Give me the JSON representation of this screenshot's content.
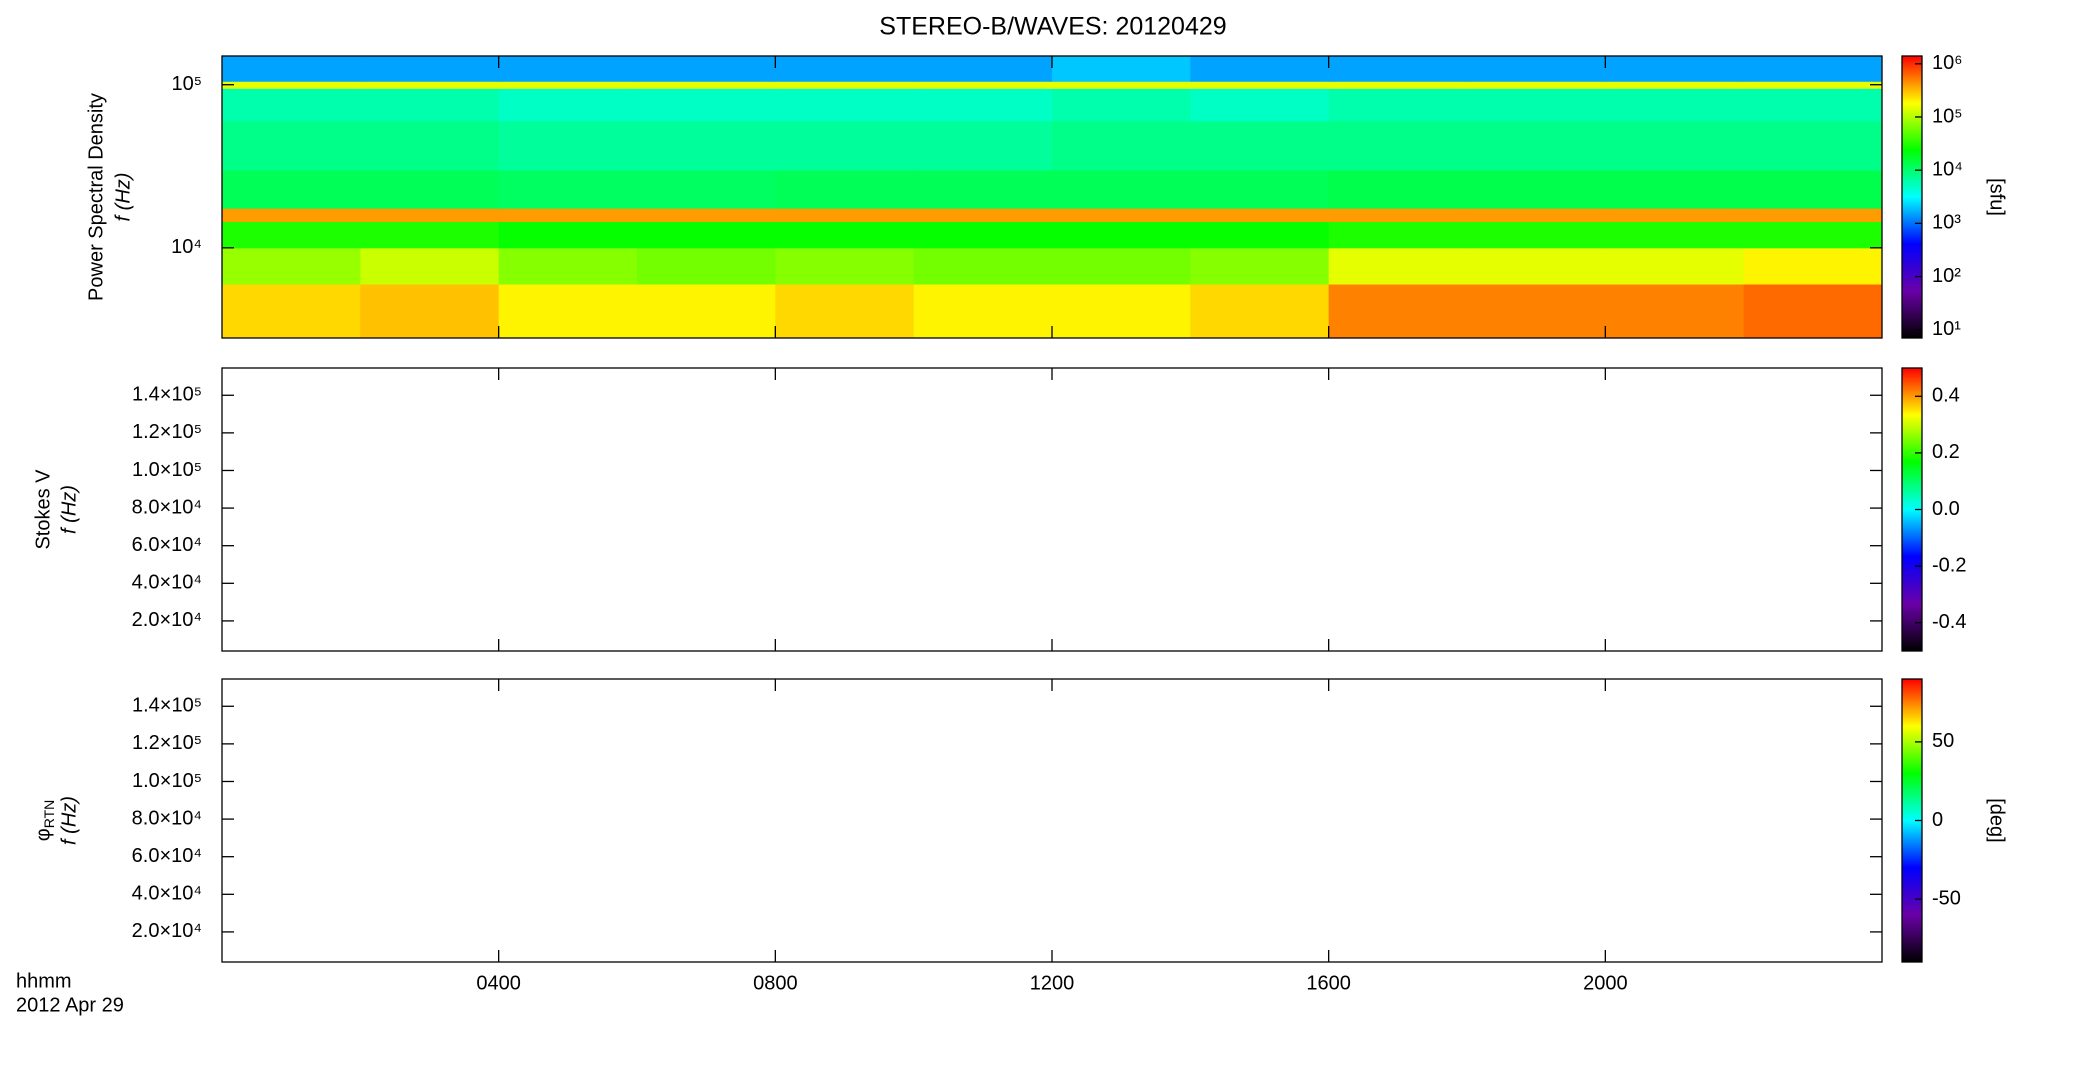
{
  "chart_data": [
    {
      "type": "heatmap",
      "title": "STEREO-B/WAVES: 20120429",
      "ylabel": "Power Spectral Density",
      "ylabel2": "f (Hz)",
      "ylog": true,
      "ylim": [
        2800,
        150000
      ],
      "yticks": [
        {
          "value": 10000,
          "label": "10⁴"
        },
        {
          "value": 100000,
          "label": "10⁵"
        }
      ],
      "x_bins": [
        0,
        2,
        4,
        6,
        8,
        10,
        12,
        14,
        16,
        18,
        20,
        22,
        24
      ],
      "y_bins": [
        2800,
        6000,
        10000,
        14500,
        17500,
        30000,
        60000,
        95000,
        105000,
        150000
      ],
      "values": [
        [
          250000,
          300000,
          200000,
          200000,
          250000,
          200000,
          200000,
          250000,
          500000,
          500000,
          500000,
          600000
        ],
        [
          80000,
          120000,
          70000,
          60000,
          70000,
          60000,
          60000,
          70000,
          150000,
          150000,
          150000,
          200000
        ],
        [
          30000,
          30000,
          25000,
          25000,
          25000,
          25000,
          25000,
          25000,
          30000,
          30000,
          30000,
          30000
        ],
        [
          400000,
          400000,
          400000,
          400000,
          400000,
          400000,
          400000,
          400000,
          400000,
          400000,
          400000,
          400000
        ],
        [
          12000,
          12000,
          11000,
          11000,
          12000,
          12000,
          12000,
          12000,
          13000,
          13000,
          13000,
          13000
        ],
        [
          8000,
          8000,
          7000,
          7000,
          7000,
          7000,
          8000,
          8000,
          8000,
          8000,
          8000,
          8000
        ],
        [
          6000,
          6000,
          5000,
          5000,
          5000,
          5000,
          6000,
          5000,
          6000,
          6000,
          6000,
          6000
        ],
        [
          150000,
          150000,
          150000,
          150000,
          150000,
          150000,
          150000,
          150000,
          150000,
          150000,
          150000,
          150000
        ],
        [
          1500,
          1500,
          1500,
          1500,
          1500,
          1500,
          2000,
          1500,
          1500,
          1500,
          1500,
          1500
        ]
      ],
      "clog": true,
      "clim": [
        7,
        1400000
      ],
      "cticks": [
        {
          "value": 10,
          "label": "10¹"
        },
        {
          "value": 100,
          "label": "10²"
        },
        {
          "value": 1000,
          "label": "10³"
        },
        {
          "value": 10000,
          "label": "10⁴"
        },
        {
          "value": 100000,
          "label": "10⁵"
        },
        {
          "value": 1000000,
          "label": "10⁶"
        }
      ],
      "clabel": "[sfu]",
      "colorscale": [
        "#000000",
        "#6a00a8",
        "#0000ff",
        "#00ffff",
        "#00ff00",
        "#ffff00",
        "#ff0000"
      ]
    },
    {
      "type": "heatmap",
      "ylabel": "Stokes V",
      "ylabel2": "f (Hz)",
      "ylim": [
        4000,
        154500
      ],
      "yticks": [
        {
          "value": 20000,
          "label": "2.0×10⁴"
        },
        {
          "value": 40000,
          "label": "4.0×10⁴"
        },
        {
          "value": 60000,
          "label": "6.0×10⁴"
        },
        {
          "value": 80000,
          "label": "8.0×10⁴"
        },
        {
          "value": 100000,
          "label": "1.0×10⁵"
        },
        {
          "value": 120000,
          "label": "1.2×10⁵"
        },
        {
          "value": 140000,
          "label": "1.4×10⁵"
        }
      ],
      "clim": [
        -0.5,
        0.5
      ],
      "cticks": [
        -0.4,
        -0.2,
        {
          "value": 0,
          "label": "0.0"
        },
        0.2,
        0.4
      ],
      "colorscale": [
        "#000000",
        "#6a00a8",
        "#0000ff",
        "#00ffff",
        "#00ff00",
        "#ffff00",
        "#ff0000"
      ]
    },
    {
      "type": "heatmap",
      "ylabel": "φ",
      "ylabel_sub": "RTN",
      "ylabel2": "f (Hz)",
      "ylim": [
        4000,
        154500
      ],
      "yticks": [
        {
          "value": 20000,
          "label": "2.0×10⁴"
        },
        {
          "value": 40000,
          "label": "4.0×10⁴"
        },
        {
          "value": 60000,
          "label": "6.0×10⁴"
        },
        {
          "value": 80000,
          "label": "8.0×10⁴"
        },
        {
          "value": 100000,
          "label": "1.0×10⁵"
        },
        {
          "value": 120000,
          "label": "1.2×10⁵"
        },
        {
          "value": 140000,
          "label": "1.4×10⁵"
        }
      ],
      "clim": [
        -90,
        90
      ],
      "cticks": [
        -50,
        0,
        50
      ],
      "clabel": "[deg]",
      "colorscale": [
        "#000000",
        "#6a00a8",
        "#0000ff",
        "#00ffff",
        "#00ff00",
        "#ffff00",
        "#ff0000"
      ],
      "xlim": [
        0,
        24
      ],
      "xticks": [
        {
          "value": 4,
          "label": "0400"
        },
        {
          "value": 8,
          "label": "0800"
        },
        {
          "value": 12,
          "label": "1200"
        },
        {
          "value": 16,
          "label": "1600"
        },
        {
          "value": 20,
          "label": "2000"
        }
      ],
      "xlabel": "hhmm",
      "date": "2012 Apr 29"
    }
  ]
}
